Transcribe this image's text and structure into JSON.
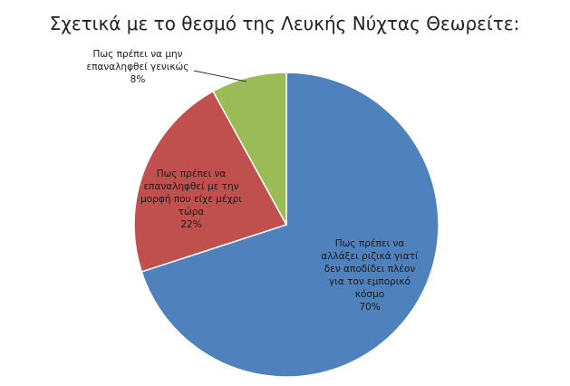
{
  "chart_data": {
    "type": "pie",
    "title": "Σχετικά με το θεσμό της Λευκής Νύχτας Θεωρείτε:",
    "slices": [
      {
        "label_lines": [
          "Πως πρέπει να",
          "αλλάξει ριζικά γιατί",
          "δεν αποδίδει πλέον",
          "για τον εμπορικό",
          "κόσμο"
        ],
        "percent_label": "70%",
        "value": 70,
        "color": "#4F81BD"
      },
      {
        "label_lines": [
          "Πως πρέπει να",
          "επαναληφθεί  με την",
          "μορφή  που  είχε μέχρι",
          "τώρα"
        ],
        "percent_label": "22%",
        "value": 22,
        "color": "#C0504D"
      },
      {
        "label_lines": [
          "Πως πρέπει να μην",
          "επαναληφθεί  γενικώς"
        ],
        "percent_label": "8%",
        "value": 8,
        "color": "#9BBB59"
      }
    ],
    "legend": "none",
    "data_labels": "category and percent"
  }
}
